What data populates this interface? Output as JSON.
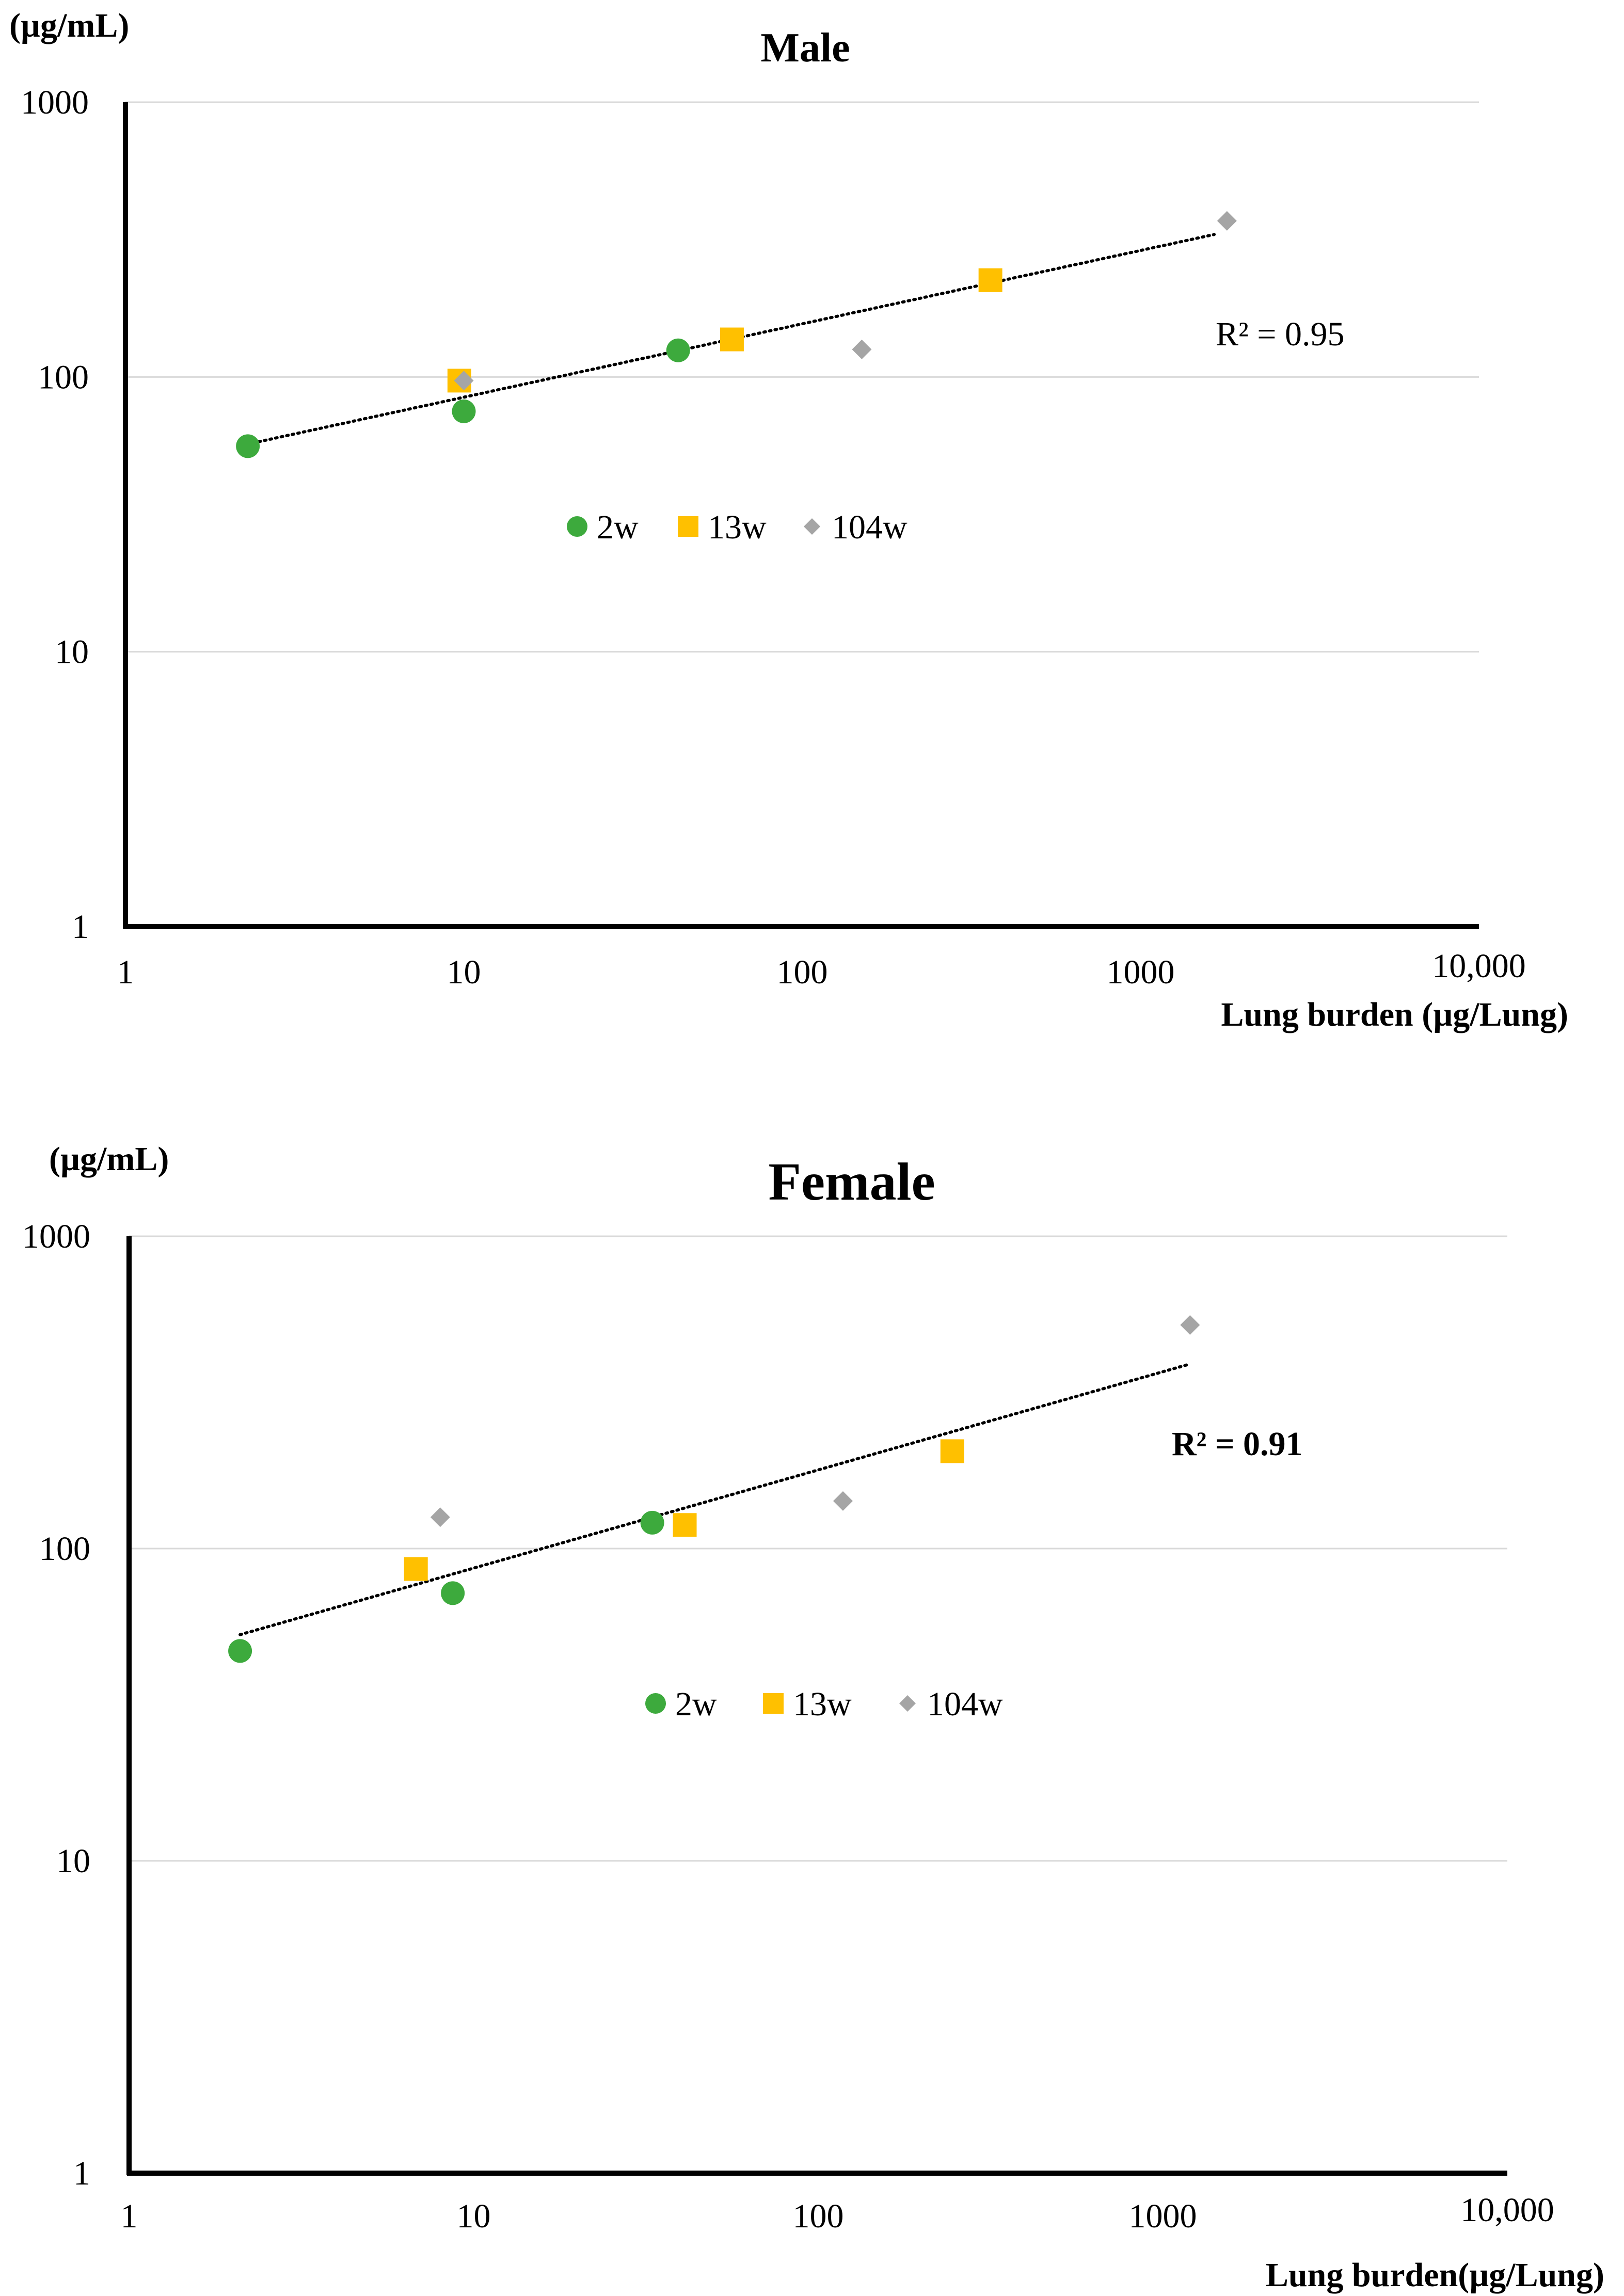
{
  "chart_data": [
    {
      "type": "scatter",
      "title": "Male",
      "y_unit_label": "(µg/mL)",
      "xlabel": "Lung burden (µg/Lung)",
      "xscale": "log",
      "yscale": "log",
      "xlim": [
        1,
        10000
      ],
      "ylim": [
        1,
        1000
      ],
      "x_tick_labels": [
        "1",
        "10",
        "100",
        "1000",
        "10,000"
      ],
      "y_tick_labels": [
        "1",
        "10",
        "100",
        "1000"
      ],
      "grid": true,
      "legend_position": "center",
      "series": [
        {
          "name": "2w",
          "marker": "circle",
          "color": "#3DAA3D",
          "points": [
            [
              2.3,
              56
            ],
            [
              10,
              75
            ],
            [
              43,
              125
            ]
          ]
        },
        {
          "name": "13w",
          "marker": "square",
          "color": "#FFC000",
          "points": [
            [
              9.7,
              97
            ],
            [
              62,
              137
            ],
            [
              360,
              225
            ]
          ]
        },
        {
          "name": "104w",
          "marker": "diamond",
          "color": "#A5A5A5",
          "points": [
            [
              10,
              97
            ],
            [
              150,
              126
            ],
            [
              1800,
              370
            ]
          ]
        }
      ],
      "trendline": {
        "type": "power",
        "style": "dotted",
        "from": [
          2.3,
          57
        ],
        "to": [
          1650,
          330
        ],
        "r2_label": "R² = 0.95"
      }
    },
    {
      "type": "scatter",
      "title": "Female",
      "y_unit_label": "(µg/mL)",
      "xlabel": "Lung burden(µg/Lung)",
      "xscale": "log",
      "yscale": "log",
      "xlim": [
        1,
        10000
      ],
      "ylim": [
        1,
        1000
      ],
      "x_tick_labels": [
        "1",
        "10",
        "100",
        "1000",
        "10,000"
      ],
      "y_tick_labels": [
        "1",
        "10",
        "100",
        "1000"
      ],
      "grid": true,
      "legend_position": "center",
      "series": [
        {
          "name": "2w",
          "marker": "circle",
          "color": "#3DAA3D",
          "points": [
            [
              2.1,
              47
            ],
            [
              8.7,
              72
            ],
            [
              33,
              121
            ]
          ]
        },
        {
          "name": "13w",
          "marker": "square",
          "color": "#FFC000",
          "points": [
            [
              6.8,
              86
            ],
            [
              41,
              119
            ],
            [
              245,
              205
            ]
          ]
        },
        {
          "name": "104w",
          "marker": "diamond",
          "color": "#A5A5A5",
          "points": [
            [
              8,
              126
            ],
            [
              118,
              142
            ],
            [
              1200,
              520
            ]
          ]
        }
      ],
      "trendline": {
        "type": "power",
        "style": "dotted",
        "from": [
          2.1,
          53
        ],
        "to": [
          1200,
          390
        ],
        "r2_label": "R² = 0.91"
      }
    }
  ]
}
